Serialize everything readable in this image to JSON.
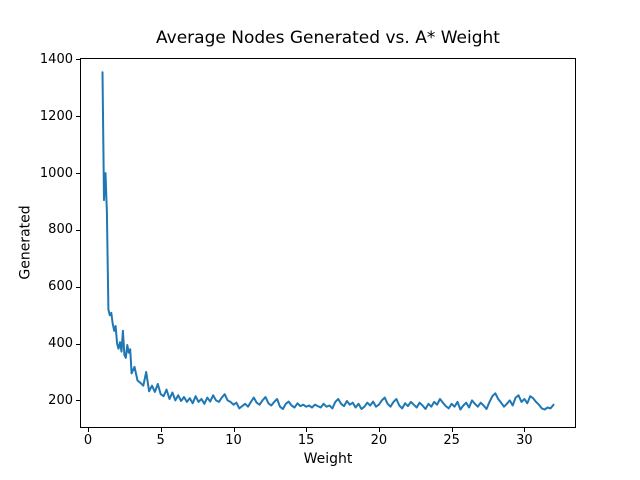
{
  "window": {
    "background": "#ffffff"
  },
  "chart_data": {
    "type": "line",
    "title": "Average Nodes Generated vs. A* Weight",
    "xlabel": "Weight",
    "ylabel": "Generated",
    "xlim": [
      -0.55,
      33.55
    ],
    "ylim": [
      103,
      1405
    ],
    "xticks": [
      0,
      5,
      10,
      15,
      20,
      25,
      30
    ],
    "yticks": [
      200,
      400,
      600,
      800,
      1000,
      1200,
      1400
    ],
    "grid": false,
    "legend_position": "none",
    "line_color": "#1f77b4",
    "axis_color": "#000000",
    "series": [
      {
        "name": "Average Nodes Generated",
        "points": [
          [
            1.0,
            1355
          ],
          [
            1.1,
            905
          ],
          [
            1.2,
            1000
          ],
          [
            1.3,
            862
          ],
          [
            1.4,
            520
          ],
          [
            1.5,
            500
          ],
          [
            1.6,
            508
          ],
          [
            1.7,
            470
          ],
          [
            1.8,
            445
          ],
          [
            1.9,
            462
          ],
          [
            2.0,
            400
          ],
          [
            2.1,
            382
          ],
          [
            2.2,
            405
          ],
          [
            2.3,
            372
          ],
          [
            2.4,
            445
          ],
          [
            2.5,
            360
          ],
          [
            2.6,
            350
          ],
          [
            2.7,
            395
          ],
          [
            2.8,
            368
          ],
          [
            2.9,
            380
          ],
          [
            3.0,
            295
          ],
          [
            3.2,
            318
          ],
          [
            3.4,
            270
          ],
          [
            3.6,
            262
          ],
          [
            3.8,
            252
          ],
          [
            4.0,
            300
          ],
          [
            4.2,
            232
          ],
          [
            4.4,
            252
          ],
          [
            4.6,
            230
          ],
          [
            4.8,
            258
          ],
          [
            5.0,
            222
          ],
          [
            5.2,
            215
          ],
          [
            5.4,
            238
          ],
          [
            5.6,
            205
          ],
          [
            5.8,
            228
          ],
          [
            6.0,
            200
          ],
          [
            6.2,
            218
          ],
          [
            6.4,
            198
          ],
          [
            6.6,
            212
          ],
          [
            6.8,
            195
          ],
          [
            7.0,
            208
          ],
          [
            7.2,
            190
          ],
          [
            7.4,
            215
          ],
          [
            7.6,
            195
          ],
          [
            7.8,
            205
          ],
          [
            8.0,
            188
          ],
          [
            8.2,
            210
          ],
          [
            8.4,
            196
          ],
          [
            8.6,
            218
          ],
          [
            8.8,
            200
          ],
          [
            9.0,
            195
          ],
          [
            9.2,
            210
          ],
          [
            9.4,
            222
          ],
          [
            9.6,
            200
          ],
          [
            9.8,
            195
          ],
          [
            10.0,
            185
          ],
          [
            10.2,
            192
          ],
          [
            10.4,
            172
          ],
          [
            10.6,
            180
          ],
          [
            10.8,
            188
          ],
          [
            11.0,
            178
          ],
          [
            11.2,
            195
          ],
          [
            11.4,
            210
          ],
          [
            11.6,
            192
          ],
          [
            11.8,
            185
          ],
          [
            12.0,
            200
          ],
          [
            12.2,
            212
          ],
          [
            12.4,
            190
          ],
          [
            12.6,
            182
          ],
          [
            12.8,
            195
          ],
          [
            13.0,
            205
          ],
          [
            13.2,
            178
          ],
          [
            13.4,
            170
          ],
          [
            13.6,
            188
          ],
          [
            13.8,
            196
          ],
          [
            14.0,
            182
          ],
          [
            14.2,
            175
          ],
          [
            14.4,
            190
          ],
          [
            14.6,
            180
          ],
          [
            14.8,
            185
          ],
          [
            15.0,
            178
          ],
          [
            15.2,
            182
          ],
          [
            15.4,
            175
          ],
          [
            15.6,
            185
          ],
          [
            15.8,
            180
          ],
          [
            16.0,
            175
          ],
          [
            16.2,
            188
          ],
          [
            16.4,
            178
          ],
          [
            16.6,
            182
          ],
          [
            16.8,
            172
          ],
          [
            17.0,
            195
          ],
          [
            17.2,
            205
          ],
          [
            17.4,
            188
          ],
          [
            17.6,
            180
          ],
          [
            17.8,
            198
          ],
          [
            18.0,
            185
          ],
          [
            18.2,
            192
          ],
          [
            18.4,
            175
          ],
          [
            18.6,
            188
          ],
          [
            18.8,
            170
          ],
          [
            19.0,
            178
          ],
          [
            19.2,
            192
          ],
          [
            19.4,
            182
          ],
          [
            19.6,
            196
          ],
          [
            19.8,
            178
          ],
          [
            20.0,
            185
          ],
          [
            20.2,
            200
          ],
          [
            20.4,
            210
          ],
          [
            20.6,
            188
          ],
          [
            20.8,
            178
          ],
          [
            21.0,
            195
          ],
          [
            21.2,
            205
          ],
          [
            21.4,
            182
          ],
          [
            21.6,
            172
          ],
          [
            21.8,
            190
          ],
          [
            22.0,
            180
          ],
          [
            22.2,
            195
          ],
          [
            22.4,
            185
          ],
          [
            22.6,
            175
          ],
          [
            22.8,
            192
          ],
          [
            23.0,
            182
          ],
          [
            23.2,
            170
          ],
          [
            23.4,
            188
          ],
          [
            23.6,
            178
          ],
          [
            23.8,
            195
          ],
          [
            24.0,
            185
          ],
          [
            24.2,
            205
          ],
          [
            24.4,
            192
          ],
          [
            24.6,
            180
          ],
          [
            24.8,
            172
          ],
          [
            25.0,
            188
          ],
          [
            25.2,
            178
          ],
          [
            25.4,
            195
          ],
          [
            25.6,
            168
          ],
          [
            25.8,
            182
          ],
          [
            26.0,
            192
          ],
          [
            26.2,
            175
          ],
          [
            26.4,
            200
          ],
          [
            26.6,
            188
          ],
          [
            26.8,
            178
          ],
          [
            27.0,
            192
          ],
          [
            27.2,
            182
          ],
          [
            27.4,
            170
          ],
          [
            27.6,
            195
          ],
          [
            27.8,
            215
          ],
          [
            28.0,
            225
          ],
          [
            28.2,
            205
          ],
          [
            28.4,
            192
          ],
          [
            28.6,
            178
          ],
          [
            28.8,
            188
          ],
          [
            29.0,
            200
          ],
          [
            29.2,
            182
          ],
          [
            29.4,
            210
          ],
          [
            29.6,
            218
          ],
          [
            29.8,
            195
          ],
          [
            30.0,
            205
          ],
          [
            30.2,
            190
          ],
          [
            30.4,
            215
          ],
          [
            30.6,
            208
          ],
          [
            30.8,
            195
          ],
          [
            31.0,
            185
          ],
          [
            31.2,
            172
          ],
          [
            31.4,
            168
          ],
          [
            31.6,
            175
          ],
          [
            31.8,
            172
          ],
          [
            32.0,
            185
          ]
        ]
      }
    ]
  }
}
